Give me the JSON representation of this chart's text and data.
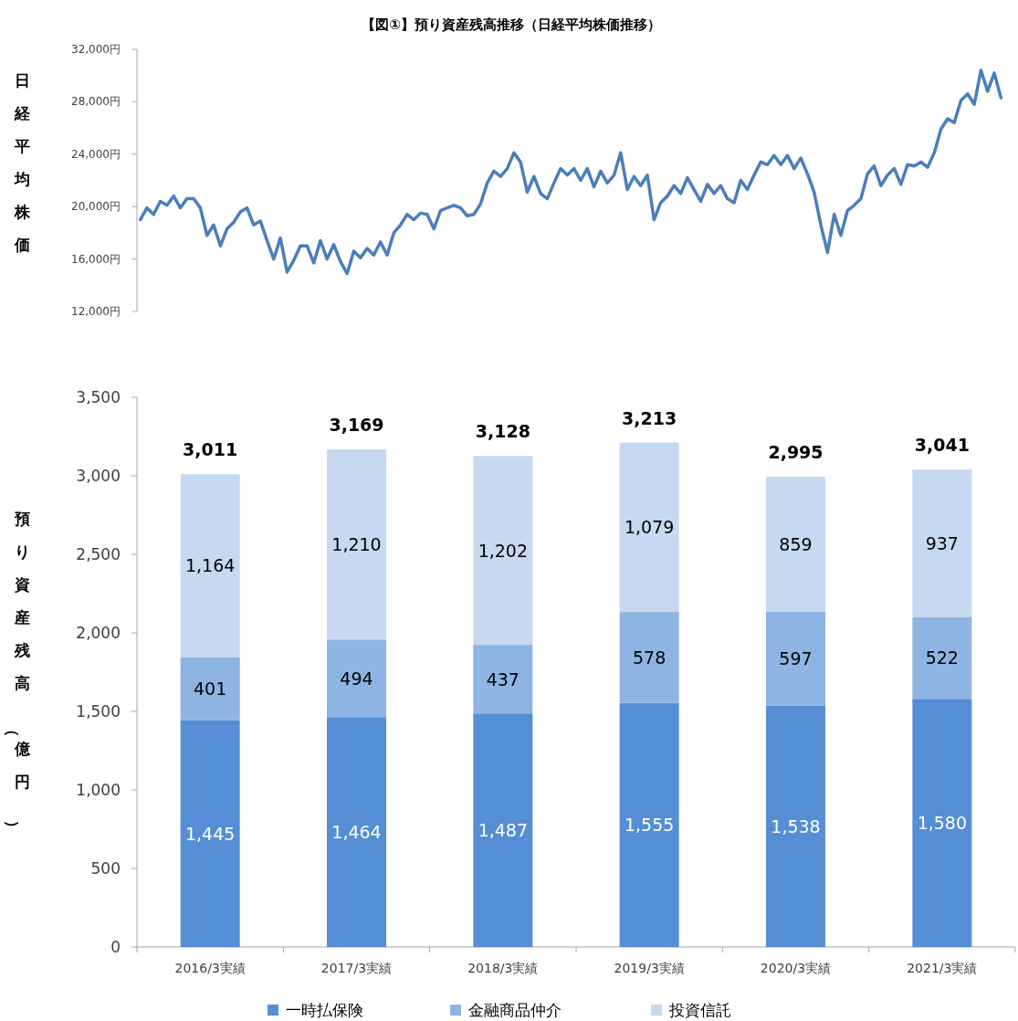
{
  "chart_data": [
    {
      "type": "line",
      "title": "【図①】預り資産残高推移（日経平均株価推移）",
      "ylabel": "日経平均株価",
      "tick_labels": "y",
      "color": "#4a7ebb",
      "ylim": [
        12000,
        32000
      ],
      "yticks": [
        {
          "value": 12000,
          "label": "12,000円"
        },
        {
          "value": 16000,
          "label": "16,000円"
        },
        {
          "value": 20000,
          "label": "20,000円"
        },
        {
          "value": 24000,
          "label": "24,000円"
        },
        {
          "value": 28000,
          "label": "28,000円"
        },
        {
          "value": 32000,
          "label": "32,000円"
        }
      ],
      "categories": [
        null,
        null,
        null,
        null,
        null,
        null,
        null,
        null,
        null,
        null,
        null,
        null,
        null,
        null,
        null,
        null,
        null,
        null,
        null,
        null,
        null,
        null,
        null,
        null,
        null,
        null,
        null,
        null,
        null,
        null,
        null,
        null,
        null,
        null,
        null,
        null,
        null,
        null,
        null,
        null,
        null,
        null,
        null,
        null,
        null,
        null,
        null,
        null,
        null,
        null,
        null,
        null,
        null,
        null,
        null,
        null,
        null,
        null,
        null,
        null,
        null,
        null,
        null,
        null,
        null,
        null,
        null,
        null,
        null,
        null,
        null,
        null,
        null,
        null,
        null,
        null,
        null,
        null,
        null,
        null,
        null,
        null,
        null,
        null,
        null,
        null,
        null,
        null,
        null,
        null,
        null,
        null,
        null,
        null,
        null,
        null,
        null,
        null,
        null,
        null,
        null,
        null,
        null,
        null,
        null,
        null,
        null,
        null,
        null,
        null,
        null,
        null,
        null,
        null,
        null,
        null,
        null,
        null,
        null,
        null,
        null,
        null,
        null,
        null,
        null,
        null,
        null,
        null,
        null,
        null
      ],
      "values": [
        19000,
        19900,
        19400,
        20400,
        20100,
        20800,
        19900,
        20600,
        20600,
        19900,
        17800,
        18600,
        17000,
        18300,
        18800,
        19600,
        19900,
        18600,
        18900,
        17400,
        16000,
        17600,
        15000,
        15900,
        17000,
        17000,
        15700,
        17400,
        16000,
        17100,
        15800,
        14900,
        16600,
        16100,
        16800,
        16300,
        17300,
        16300,
        18000,
        18600,
        19400,
        19000,
        19500,
        19400,
        18300,
        19700,
        19900,
        20100,
        19900,
        19300,
        19400,
        20200,
        21800,
        22700,
        22300,
        22900,
        24100,
        23400,
        21100,
        22300,
        21000,
        20600,
        21800,
        22900,
        22400,
        22900,
        22000,
        22900,
        21500,
        22700,
        21800,
        22400,
        24100,
        21300,
        22300,
        21600,
        22400,
        19000,
        20300,
        20800,
        21600,
        21000,
        22200,
        21300,
        20400,
        21700,
        21000,
        21600,
        20600,
        20300,
        22000,
        21300,
        22400,
        23400,
        23200,
        23900,
        23200,
        23900,
        22900,
        23700,
        22500,
        21100,
        18600,
        16500,
        19400,
        17800,
        19700,
        20100,
        20600,
        22500,
        23100,
        21600,
        22400,
        22900,
        21700,
        23200,
        23100,
        23400,
        23000,
        24100,
        25900,
        26700,
        26400,
        28100,
        28600,
        27800,
        30400,
        28800,
        30200,
        28300
      ]
    },
    {
      "type": "bar",
      "stacked": true,
      "ylabel": "預り資産残高（億円）",
      "legend": "bottom",
      "categories": [
        "2016/3実績",
        "2017/3実績",
        "2018/3実績",
        "2019/3実績",
        "2020/3実績",
        "2021/3実績"
      ],
      "ylim": [
        0,
        3500
      ],
      "yticks": [
        0,
        500,
        {
          "value": 1000,
          "label": "1,000"
        },
        {
          "value": 1500,
          "label": "1,500"
        },
        {
          "value": 2000,
          "label": "2,000"
        },
        {
          "value": 2500,
          "label": "2,500"
        },
        {
          "value": 3000,
          "label": "3,000"
        },
        {
          "value": 3500,
          "label": "3,500"
        }
      ],
      "series": [
        {
          "name": "一時払保険",
          "color": "#558ed5",
          "values": [
            1445,
            1464,
            1487,
            1555,
            1538,
            1580
          ],
          "value_labels": [
            "1,445",
            "1,464",
            "1,487",
            "1,555",
            "1,538",
            "1,580"
          ]
        },
        {
          "name": "金融商品仲介",
          "color": "#8eb4e3",
          "values": [
            401,
            494,
            437,
            578,
            597,
            522
          ],
          "value_labels": [
            "401",
            "494",
            "437",
            "578",
            "597",
            "522"
          ]
        },
        {
          "name": "投資信託",
          "color": "#c6d9f1",
          "values": [
            1164,
            1210,
            1202,
            1079,
            859,
            937
          ],
          "value_labels": [
            "1,164",
            "1,210",
            "1,202",
            "1,079",
            "859",
            "937"
          ]
        }
      ],
      "totals": [
        "3,011",
        "3,169",
        "3,128",
        "3,213",
        "2,995",
        "3,041"
      ]
    }
  ]
}
